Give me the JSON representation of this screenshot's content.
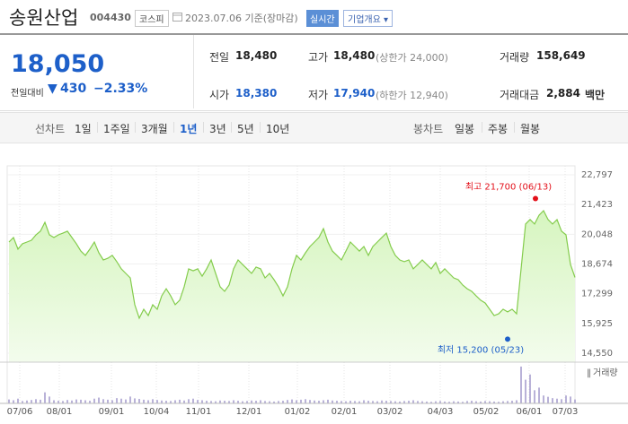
{
  "header": {
    "name": "송원산업",
    "code": "004430",
    "market": "코스피",
    "date": "2023.07.06 기준(장마감)",
    "realtime": "실시간",
    "overview": "기업개요"
  },
  "quote": {
    "price": "18,050",
    "change_label": "전일대비",
    "change": "430",
    "change_pct": "−2.33%"
  },
  "stats": [
    {
      "label": "전일",
      "value": "18,480"
    },
    {
      "label": "고가",
      "value": "18,480",
      "note": "(상한가 24,000)"
    },
    {
      "label": "거래량",
      "value": "158,649"
    },
    {
      "label": "시가",
      "value": "18,380"
    },
    {
      "label": "저가",
      "value": "17,940",
      "note": "(하한가 12,940)"
    },
    {
      "label": "거래대금",
      "value": "2,884",
      "unit": "백만"
    }
  ],
  "tabs": {
    "line_label": "선차트",
    "line_periods": [
      "1일",
      "1주일",
      "3개월",
      "1년",
      "3년",
      "5년",
      "10년"
    ],
    "selected": 3,
    "candle_label": "봉차트",
    "candle_periods": [
      "일봉",
      "주봉",
      "월봉"
    ]
  },
  "chart_data": {
    "type": "line",
    "color": "#84cc4c",
    "values": [
      19690,
      19900,
      19360,
      19610,
      19690,
      19770,
      20020,
      20190,
      20600,
      20020,
      19900,
      20020,
      20100,
      20190,
      19900,
      19610,
      19270,
      19070,
      19360,
      19690,
      19190,
      18860,
      18940,
      19070,
      18780,
      18450,
      18240,
      18030,
      16790,
      16170,
      16580,
      16290,
      16790,
      16580,
      17200,
      17530,
      17200,
      16790,
      17000,
      17620,
      18450,
      18360,
      18450,
      18110,
      18450,
      18860,
      18240,
      17620,
      17410,
      17700,
      18450,
      18860,
      18650,
      18450,
      18240,
      18530,
      18450,
      18030,
      18240,
      17950,
      17620,
      17200,
      17620,
      18450,
      19070,
      18860,
      19190,
      19480,
      19690,
      19900,
      20310,
      19690,
      19270,
      19070,
      18860,
      19270,
      19690,
      19480,
      19270,
      19480,
      19070,
      19480,
      19690,
      19900,
      20100,
      19480,
      19070,
      18860,
      18780,
      18860,
      18450,
      18650,
      18860,
      18650,
      18450,
      18740,
      18240,
      18450,
      18240,
      18030,
      17950,
      17700,
      17530,
      17410,
      17200,
      17000,
      16870,
      16580,
      16290,
      16370,
      16580,
      16460,
      16580,
      16370,
      18450,
      20520,
      20730,
      20520,
      20930,
      21140,
      20730,
      20520,
      20730,
      20190,
      20020,
      18650,
      18050
    ],
    "xlim": [
      0,
      126
    ],
    "xticks": [
      {
        "value": 2.4,
        "label": "07/06"
      },
      {
        "value": 11.2,
        "label": "08/01"
      },
      {
        "value": 22.8,
        "label": "09/01"
      },
      {
        "value": 32.8,
        "label": "10/04"
      },
      {
        "value": 42.2,
        "label": "11/01"
      },
      {
        "value": 53.4,
        "label": "12/01"
      },
      {
        "value": 64.2,
        "label": "01/02"
      },
      {
        "value": 74.6,
        "label": "02/01"
      },
      {
        "value": 84.8,
        "label": "03/02"
      },
      {
        "value": 96,
        "label": "04/03"
      },
      {
        "value": 106.2,
        "label": "05/02"
      },
      {
        "value": 115.8,
        "label": "06/01"
      },
      {
        "value": 123.8,
        "label": "07/03"
      }
    ],
    "ylim": [
      14550,
      22797
    ],
    "yticks": [
      {
        "value": 22797,
        "label": "22,797"
      },
      {
        "value": 21423,
        "label": "21,423"
      },
      {
        "value": 20048,
        "label": "20,048"
      },
      {
        "value": 18674,
        "label": "18,674"
      },
      {
        "value": 17299,
        "label": "17,299"
      },
      {
        "value": 15925,
        "label": "15,925"
      },
      {
        "value": 14550,
        "label": "14,550"
      }
    ],
    "annotations": [
      {
        "text": "최고 21,700 (06/13)",
        "x": 117.2,
        "value": 21700,
        "color": "#e3101a"
      },
      {
        "text": "최저 15,200 (05/23)",
        "x": 111,
        "value": 15200,
        "color": "#1d5fc9"
      }
    ],
    "volume": {
      "label": "거래량",
      "color": "#a8a0cf",
      "ylim": [
        0,
        1500
      ],
      "values": [
        150,
        120,
        180,
        90,
        110,
        130,
        160,
        140,
        420,
        260,
        120,
        100,
        90,
        130,
        110,
        150,
        140,
        120,
        100,
        180,
        220,
        160,
        140,
        120,
        200,
        180,
        150,
        260,
        190,
        170,
        140,
        120,
        160,
        130,
        110,
        100,
        90,
        120,
        140,
        110,
        160,
        180,
        130,
        120,
        100,
        90,
        80,
        110,
        100,
        90,
        120,
        100,
        80,
        90,
        110,
        100,
        120,
        90,
        80,
        70,
        90,
        100,
        130,
        150,
        120,
        140,
        160,
        130,
        110,
        100,
        120,
        140,
        110,
        100,
        90,
        80,
        100,
        90,
        80,
        120,
        100,
        90,
        80,
        110,
        100,
        90,
        80,
        70,
        90,
        100,
        120,
        90,
        80,
        70,
        60,
        80,
        90,
        70,
        60,
        80,
        70,
        60,
        90,
        100,
        80,
        70,
        90,
        80,
        70,
        60,
        80,
        90,
        100,
        120,
        1400,
        900,
        1100,
        500,
        600,
        300,
        250,
        200,
        180,
        160,
        300,
        260,
        150
      ]
    }
  }
}
